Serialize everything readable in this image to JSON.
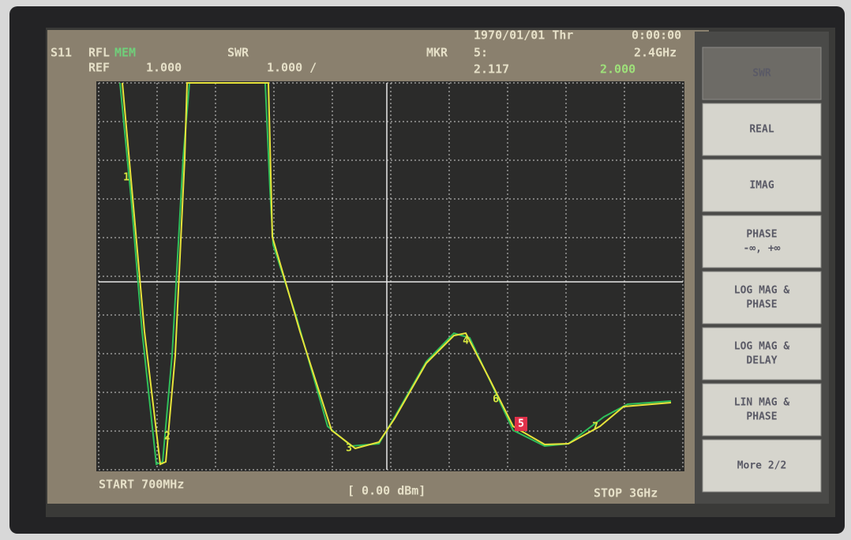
{
  "status": {
    "date": "1970/01/01 Thr",
    "time": "0:00:00"
  },
  "header": {
    "channel": "S11",
    "mode": "RFL",
    "memory": "MEM",
    "format": "SWR",
    "marker_label": "MKR",
    "marker_number": "5:",
    "marker_freq": "2.4GHz",
    "ref_label": "REF",
    "ref_value": "1.000",
    "scale": "1.000 /",
    "marker_value": "2.117",
    "marker_value2": "2.000"
  },
  "footer": {
    "start": "START 700MHz",
    "power": "[ 0.00 dBm]",
    "stop": "STOP 3GHz"
  },
  "markers": [
    "1",
    "2",
    "3",
    "4",
    "6",
    "5",
    "7"
  ],
  "softkeys": [
    [
      "SWR"
    ],
    [
      "REAL"
    ],
    [
      "IMAG"
    ],
    [
      "PHASE",
      "-∞, +∞"
    ],
    [
      "LOG MAG &",
      "PHASE"
    ],
    [
      "LOG MAG &",
      "DELAY"
    ],
    [
      "LIN MAG &",
      "PHASE"
    ],
    [
      "More 2/2"
    ]
  ]
}
